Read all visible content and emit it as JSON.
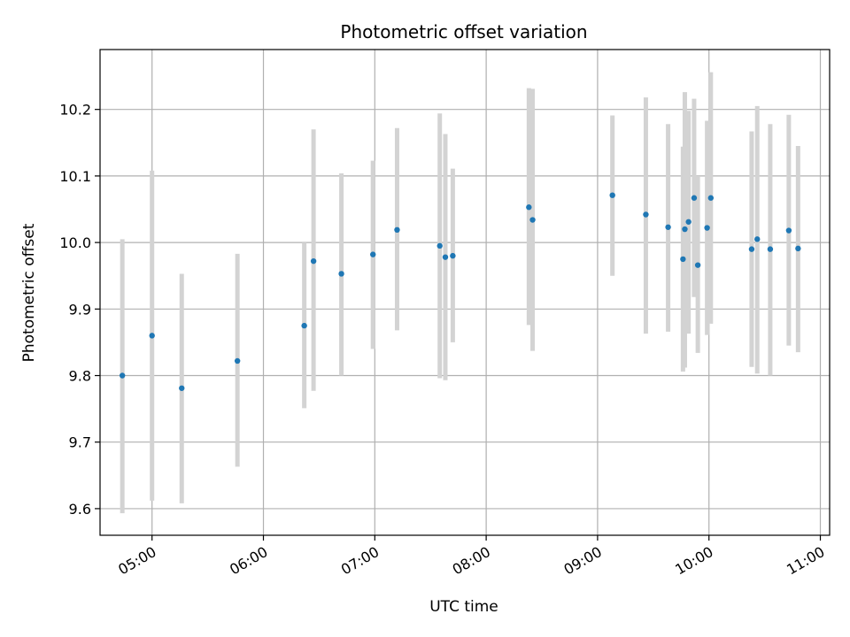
{
  "chart_data": {
    "type": "scatter",
    "title": "Photometric offset variation",
    "xlabel": "UTC time",
    "ylabel": "Photometric offset",
    "x_axis_type": "time",
    "xlim": [
      "04:32",
      "11:05"
    ],
    "ylim": [
      9.56,
      10.29
    ],
    "x_ticks": [
      "05:00",
      "06:00",
      "07:00",
      "08:00",
      "09:00",
      "10:00",
      "11:00"
    ],
    "y_ticks": [
      9.6,
      9.7,
      9.8,
      9.9,
      10.0,
      10.1,
      10.2
    ],
    "y_tick_labels": [
      "9.6",
      "9.7",
      "9.8",
      "9.9",
      "10.0",
      "10.1",
      "10.2"
    ],
    "grid": true,
    "colors": {
      "point": "#1f77b4",
      "errorbar": "#d3d3d3",
      "grid": "#b0b0b0"
    },
    "points": [
      {
        "time": "04:44",
        "y": 9.8,
        "err_low": 9.593,
        "err_high": 10.005
      },
      {
        "time": "05:00",
        "y": 9.86,
        "err_low": 9.612,
        "err_high": 10.108
      },
      {
        "time": "05:16",
        "y": 9.781,
        "err_low": 9.608,
        "err_high": 9.953
      },
      {
        "time": "05:46",
        "y": 9.822,
        "err_low": 9.663,
        "err_high": 9.983
      },
      {
        "time": "06:22",
        "y": 9.875,
        "err_low": 9.751,
        "err_high": 10.0
      },
      {
        "time": "06:27",
        "y": 9.972,
        "err_low": 9.777,
        "err_high": 10.17
      },
      {
        "time": "06:42",
        "y": 9.953,
        "err_low": 9.8,
        "err_high": 10.104
      },
      {
        "time": "06:59",
        "y": 9.982,
        "err_low": 9.84,
        "err_high": 10.123
      },
      {
        "time": "07:12",
        "y": 10.019,
        "err_low": 9.868,
        "err_high": 10.172
      },
      {
        "time": "07:35",
        "y": 9.995,
        "err_low": 9.796,
        "err_high": 10.194
      },
      {
        "time": "07:38",
        "y": 9.978,
        "err_low": 9.793,
        "err_high": 10.163
      },
      {
        "time": "07:42",
        "y": 9.98,
        "err_low": 9.85,
        "err_high": 10.111
      },
      {
        "time": "08:23",
        "y": 10.053,
        "err_low": 9.876,
        "err_high": 10.232
      },
      {
        "time": "08:25",
        "y": 10.034,
        "err_low": 9.837,
        "err_high": 10.231
      },
      {
        "time": "09:08",
        "y": 10.071,
        "err_low": 9.95,
        "err_high": 10.191
      },
      {
        "time": "09:26",
        "y": 10.042,
        "err_low": 9.863,
        "err_high": 10.218
      },
      {
        "time": "09:38",
        "y": 10.023,
        "err_low": 9.866,
        "err_high": 10.178
      },
      {
        "time": "09:46",
        "y": 9.975,
        "err_low": 9.806,
        "err_high": 10.144
      },
      {
        "time": "09:47",
        "y": 10.02,
        "err_low": 9.812,
        "err_high": 10.226
      },
      {
        "time": "09:49",
        "y": 10.031,
        "err_low": 9.863,
        "err_high": 10.198
      },
      {
        "time": "09:52",
        "y": 10.067,
        "err_low": 9.918,
        "err_high": 10.216
      },
      {
        "time": "09:54",
        "y": 9.966,
        "err_low": 9.834,
        "err_high": 10.1
      },
      {
        "time": "09:59",
        "y": 10.022,
        "err_low": 9.861,
        "err_high": 10.183
      },
      {
        "time": "10:01",
        "y": 10.067,
        "err_low": 9.878,
        "err_high": 10.256
      },
      {
        "time": "10:23",
        "y": 9.99,
        "err_low": 9.813,
        "err_high": 10.167
      },
      {
        "time": "10:26",
        "y": 10.005,
        "err_low": 9.803,
        "err_high": 10.205
      },
      {
        "time": "10:33",
        "y": 9.99,
        "err_low": 9.8,
        "err_high": 10.178
      },
      {
        "time": "10:43",
        "y": 10.018,
        "err_low": 9.845,
        "err_high": 10.192
      },
      {
        "time": "10:48",
        "y": 9.991,
        "err_low": 9.835,
        "err_high": 10.145
      }
    ]
  }
}
